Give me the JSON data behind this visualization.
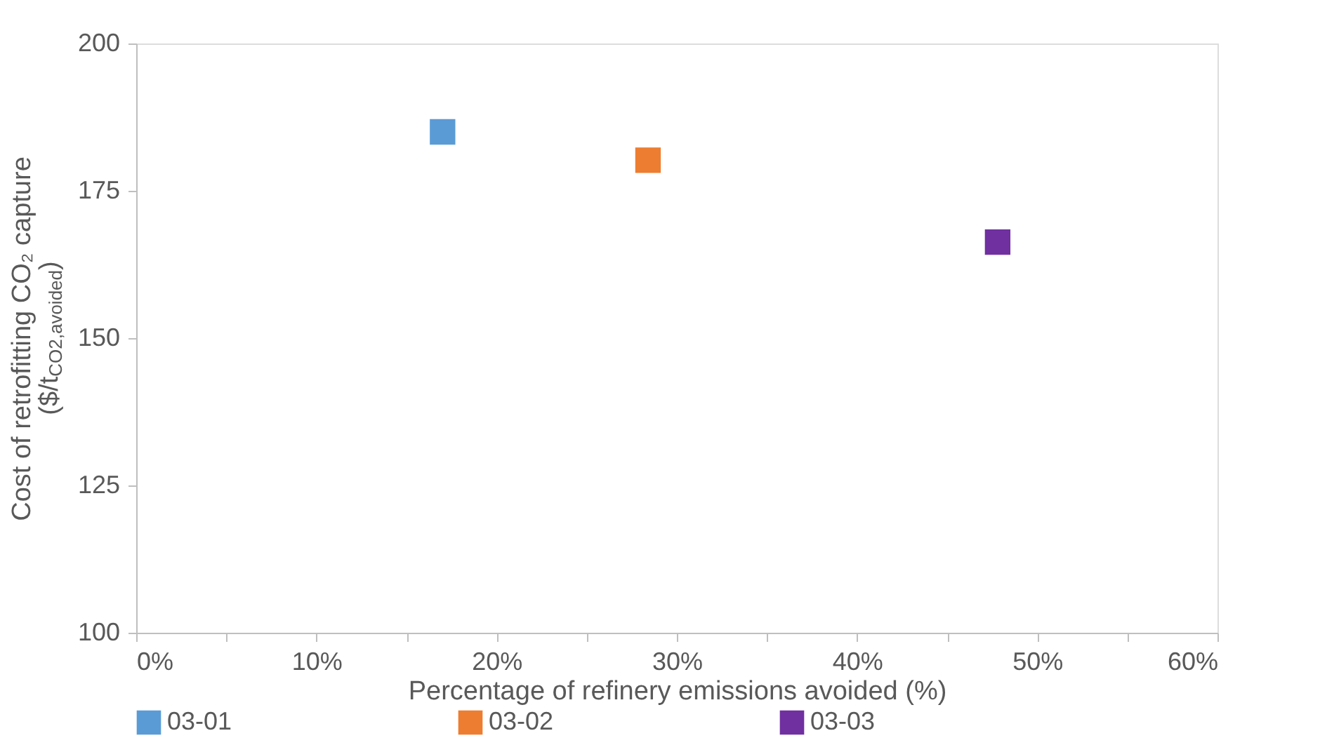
{
  "chart_data": {
    "type": "scatter",
    "xlabel": "Percentage of refinery emissions avoided (%)",
    "ylabel": "Cost of retrofitting CO₂ capture\n($/t$_{CO2,avoided}$)",
    "series": [
      {
        "name": "03-01",
        "color": "#5b9bd5",
        "x": [
          17
        ],
        "values": [
          185
        ]
      },
      {
        "name": "03-02",
        "color": "#ed7d31",
        "x": [
          28.4
        ],
        "values": [
          180.2
        ]
      },
      {
        "name": "03-03",
        "color": "#7030a0",
        "x": [
          47.8
        ],
        "values": [
          166.3
        ]
      }
    ],
    "xlim": [
      0,
      60
    ],
    "xticks": [
      {
        "value": 0,
        "label": "0%"
      },
      {
        "value": 5,
        "label": null
      },
      {
        "value": 10,
        "label": "10%"
      },
      {
        "value": 15,
        "label": null
      },
      {
        "value": 20,
        "label": "20%"
      },
      {
        "value": 25,
        "label": null
      },
      {
        "value": 30,
        "label": "30%"
      },
      {
        "value": 35,
        "label": null
      },
      {
        "value": 40,
        "label": "40%"
      },
      {
        "value": 45,
        "label": null
      },
      {
        "value": 50,
        "label": "50%"
      },
      {
        "value": 55,
        "label": null
      },
      {
        "value": 60,
        "label": "60%"
      }
    ],
    "ylim": [
      100,
      200
    ],
    "yticks": [
      100,
      125,
      150,
      175,
      200
    ],
    "grid": false,
    "legend": "bottom",
    "marker": "square"
  }
}
